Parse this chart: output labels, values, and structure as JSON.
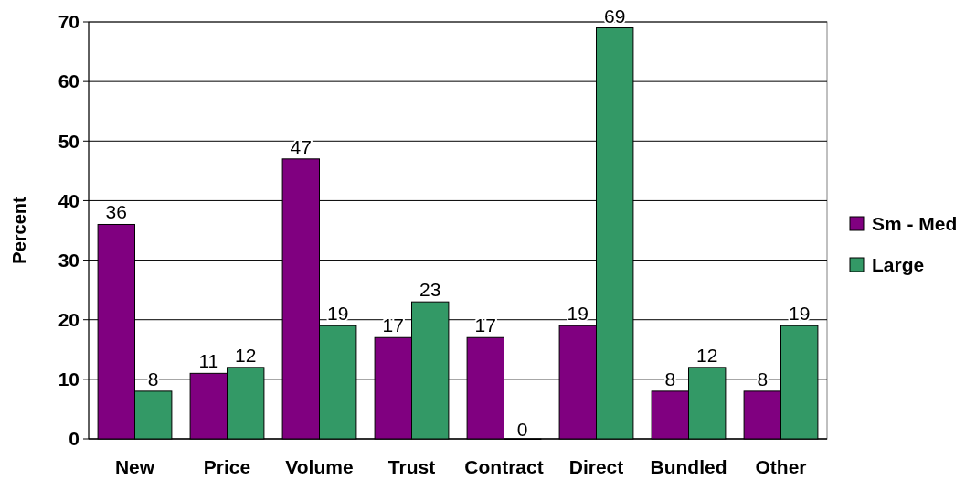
{
  "chart_data": {
    "type": "bar",
    "ylabel": "Percent",
    "categories": [
      "New",
      "Price",
      "Volume",
      "Trust",
      "Contract",
      "Direct",
      "Bundled",
      "Other"
    ],
    "series": [
      {
        "name": "Sm - Med",
        "color": "#800080",
        "values": [
          36,
          11,
          47,
          17,
          17,
          19,
          8,
          8
        ]
      },
      {
        "name": "Large",
        "color": "#339966",
        "values": [
          8,
          12,
          19,
          23,
          0,
          69,
          12,
          19
        ]
      }
    ],
    "ylim": [
      0,
      70
    ],
    "yticks": [
      0,
      10,
      20,
      30,
      40,
      50,
      60,
      70
    ],
    "grid": "y",
    "legend": "right",
    "data_labels": true
  }
}
